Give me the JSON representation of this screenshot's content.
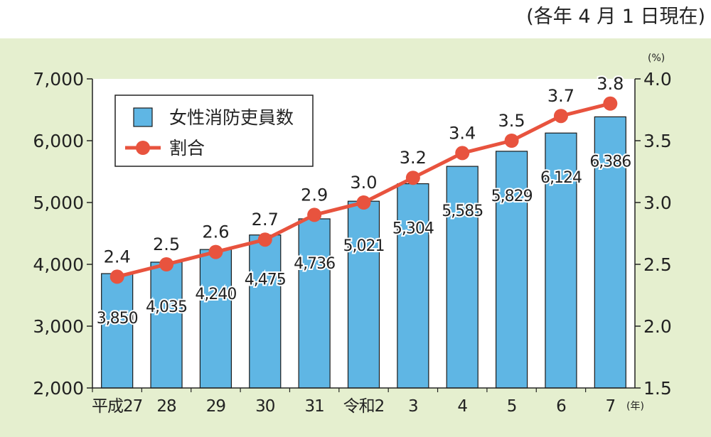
{
  "note": "(各年 4 月 1 日現在)",
  "colors": {
    "background": "#e5efcf",
    "plot_area": "#ffffff",
    "bar": "#5fb6e4",
    "bar_edge": "#1a1a1a",
    "line": "#e8533e"
  },
  "chart_data": {
    "type": "bar",
    "categories": [
      "平成27",
      "28",
      "29",
      "30",
      "31",
      "令和2",
      "3",
      "4",
      "5",
      "6",
      "7"
    ],
    "x_unit": "(年)",
    "series": [
      {
        "name": "女性消防吏員数",
        "type": "bar",
        "axis": "left",
        "values": [
          3850,
          4035,
          4240,
          4475,
          4736,
          5021,
          5304,
          5585,
          5829,
          6124,
          6386
        ],
        "labels": [
          "3,850",
          "4,035",
          "4,240",
          "4,475",
          "4,736",
          "5,021",
          "5,304",
          "5,585",
          "5,829",
          "6,124",
          "6,386"
        ]
      },
      {
        "name": "割合",
        "type": "line",
        "axis": "right",
        "values": [
          2.4,
          2.5,
          2.6,
          2.7,
          2.9,
          3.0,
          3.2,
          3.4,
          3.5,
          3.7,
          3.8
        ],
        "labels": [
          "2.4",
          "2.5",
          "2.6",
          "2.7",
          "2.9",
          "3.0",
          "3.2",
          "3.4",
          "3.5",
          "3.7",
          "3.8"
        ]
      }
    ],
    "y_left": {
      "min": 2000,
      "max": 7000,
      "ticks": [
        "2,000",
        "3,000",
        "4,000",
        "5,000",
        "6,000",
        "7,000"
      ]
    },
    "y_right": {
      "min": 1.5,
      "max": 4.0,
      "unit": "(%)",
      "ticks": [
        "1.5",
        "2.0",
        "2.5",
        "3.0",
        "3.5",
        "4.0"
      ]
    },
    "legend": {
      "position": "top-left",
      "items": [
        "女性消防吏員数",
        "割合"
      ]
    },
    "grid": false
  }
}
